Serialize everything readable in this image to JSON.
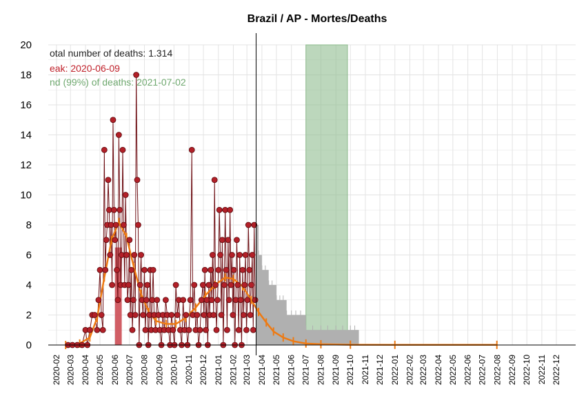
{
  "colors": {
    "grid": "#e3e3e3",
    "bar_gray": "#b0b0b0",
    "peak_bar": "#c9424a",
    "points": "#b22028",
    "points_stroke": "#5a0a0e",
    "line_dark": "#6e0f14",
    "fit_line": "#ee7a12",
    "green_band": "#8fbc8f",
    "annotation_total": "#222222",
    "annotation_peak": "#c0202a",
    "annotation_end": "#6fa86f"
  },
  "chart_data": {
    "type": "bar",
    "title": "Brazil / AP - Mortes/Deaths",
    "xlabel": "",
    "ylabel": "",
    "ylim": [
      0,
      20
    ],
    "yticks": [
      "0",
      "2",
      "4",
      "6",
      "8",
      "10",
      "12",
      "14",
      "16",
      "18",
      "20"
    ],
    "xlim": [
      "2020-01-15",
      "2023-01-10"
    ],
    "x_tick_labels": [
      "2020-02",
      "2020-03",
      "2020-04",
      "2020-05",
      "2020-06",
      "2020-07",
      "2020-08",
      "2020-09",
      "2020-10",
      "2020-11",
      "2020-12",
      "2021-01",
      "2021-02",
      "2021-03",
      "2021-04",
      "2021-05",
      "2021-06",
      "2021-07",
      "2021-08",
      "2021-09",
      "2021-10",
      "2021-11",
      "2021-12",
      "2022-01",
      "2022-02",
      "2022-03",
      "2022-04",
      "2022-05",
      "2022-06",
      "2022-07",
      "2022-08",
      "2022-09",
      "2022-10",
      "2022-11",
      "2022-12"
    ],
    "grid": true,
    "annotations": {
      "total": "otal number of deaths: 1.314",
      "peak": "eak: 2020-06-09",
      "end": "nd (99%) of deaths: 2021-07-02"
    },
    "today_date": "2021-03-20",
    "peak_band": [
      "2020-06-01",
      "2020-06-15"
    ],
    "peak_band_value": 6.5,
    "end_band": [
      "2021-07-01",
      "2021-09-25"
    ],
    "observed_points": [
      [
        "2020-02-25",
        0
      ],
      [
        "2020-03-05",
        0
      ],
      [
        "2020-03-15",
        0
      ],
      [
        "2020-03-25",
        0
      ],
      [
        "2020-04-01",
        1
      ],
      [
        "2020-04-05",
        0
      ],
      [
        "2020-04-10",
        1
      ],
      [
        "2020-04-15",
        2
      ],
      [
        "2020-04-20",
        2
      ],
      [
        "2020-04-25",
        1
      ],
      [
        "2020-04-28",
        3
      ],
      [
        "2020-05-01",
        5
      ],
      [
        "2020-05-04",
        2
      ],
      [
        "2020-05-07",
        1
      ],
      [
        "2020-05-10",
        13
      ],
      [
        "2020-05-12",
        5
      ],
      [
        "2020-05-14",
        7
      ],
      [
        "2020-05-16",
        8
      ],
      [
        "2020-05-18",
        11
      ],
      [
        "2020-05-20",
        9
      ],
      [
        "2020-05-22",
        6
      ],
      [
        "2020-05-24",
        8
      ],
      [
        "2020-05-26",
        4
      ],
      [
        "2020-05-28",
        15
      ],
      [
        "2020-05-30",
        9
      ],
      [
        "2020-06-01",
        7
      ],
      [
        "2020-06-03",
        8
      ],
      [
        "2020-06-05",
        5
      ],
      [
        "2020-06-07",
        3
      ],
      [
        "2020-06-09",
        14
      ],
      [
        "2020-06-11",
        9
      ],
      [
        "2020-06-13",
        4
      ],
      [
        "2020-06-15",
        6
      ],
      [
        "2020-06-17",
        13
      ],
      [
        "2020-06-19",
        8
      ],
      [
        "2020-06-21",
        4
      ],
      [
        "2020-06-23",
        10
      ],
      [
        "2020-06-25",
        6
      ],
      [
        "2020-06-27",
        3
      ],
      [
        "2020-06-29",
        4
      ],
      [
        "2020-07-01",
        7
      ],
      [
        "2020-07-03",
        2
      ],
      [
        "2020-07-05",
        5
      ],
      [
        "2020-07-07",
        1
      ],
      [
        "2020-07-09",
        3
      ],
      [
        "2020-07-11",
        6
      ],
      [
        "2020-07-13",
        2
      ],
      [
        "2020-07-15",
        18
      ],
      [
        "2020-07-17",
        11
      ],
      [
        "2020-07-19",
        8
      ],
      [
        "2020-07-21",
        0
      ],
      [
        "2020-07-23",
        4
      ],
      [
        "2020-07-25",
        6
      ],
      [
        "2020-07-27",
        3
      ],
      [
        "2020-07-29",
        2
      ],
      [
        "2020-08-01",
        5
      ],
      [
        "2020-08-03",
        1
      ],
      [
        "2020-08-05",
        3
      ],
      [
        "2020-08-07",
        4
      ],
      [
        "2020-08-09",
        0
      ],
      [
        "2020-08-11",
        2
      ],
      [
        "2020-08-13",
        5
      ],
      [
        "2020-08-15",
        1
      ],
      [
        "2020-08-17",
        3
      ],
      [
        "2020-08-19",
        5
      ],
      [
        "2020-08-21",
        2
      ],
      [
        "2020-08-24",
        1
      ],
      [
        "2020-08-27",
        3
      ],
      [
        "2020-08-30",
        2
      ],
      [
        "2020-09-02",
        1
      ],
      [
        "2020-09-05",
        0
      ],
      [
        "2020-09-08",
        2
      ],
      [
        "2020-09-11",
        1
      ],
      [
        "2020-09-14",
        3
      ],
      [
        "2020-09-17",
        2
      ],
      [
        "2020-09-20",
        1
      ],
      [
        "2020-09-23",
        0
      ],
      [
        "2020-09-26",
        2
      ],
      [
        "2020-09-29",
        1
      ],
      [
        "2020-10-02",
        0
      ],
      [
        "2020-10-05",
        4
      ],
      [
        "2020-10-08",
        2
      ],
      [
        "2020-10-11",
        3
      ],
      [
        "2020-10-14",
        1
      ],
      [
        "2020-10-17",
        0
      ],
      [
        "2020-10-20",
        3
      ],
      [
        "2020-10-23",
        1
      ],
      [
        "2020-10-26",
        2
      ],
      [
        "2020-10-29",
        0
      ],
      [
        "2020-11-01",
        1
      ],
      [
        "2020-11-04",
        3
      ],
      [
        "2020-11-07",
        13
      ],
      [
        "2020-11-09",
        2
      ],
      [
        "2020-11-12",
        4
      ],
      [
        "2020-11-15",
        1
      ],
      [
        "2020-11-18",
        2
      ],
      [
        "2020-11-21",
        0
      ],
      [
        "2020-11-24",
        1
      ],
      [
        "2020-11-27",
        3
      ],
      [
        "2020-11-30",
        4
      ],
      [
        "2020-12-02",
        2
      ],
      [
        "2020-12-04",
        5
      ],
      [
        "2020-12-06",
        1
      ],
      [
        "2020-12-08",
        3
      ],
      [
        "2020-12-10",
        0
      ],
      [
        "2020-12-12",
        4
      ],
      [
        "2020-12-14",
        2
      ],
      [
        "2020-12-16",
        5
      ],
      [
        "2020-12-18",
        3
      ],
      [
        "2020-12-20",
        6
      ],
      [
        "2020-12-22",
        2
      ],
      [
        "2020-12-24",
        11
      ],
      [
        "2020-12-26",
        4
      ],
      [
        "2020-12-28",
        1
      ],
      [
        "2020-12-30",
        3
      ],
      [
        "2021-01-01",
        5
      ],
      [
        "2021-01-03",
        9
      ],
      [
        "2021-01-05",
        6
      ],
      [
        "2021-01-07",
        2
      ],
      [
        "2021-01-09",
        7
      ],
      [
        "2021-01-11",
        0
      ],
      [
        "2021-01-13",
        4
      ],
      [
        "2021-01-15",
        9
      ],
      [
        "2021-01-17",
        5
      ],
      [
        "2021-01-19",
        1
      ],
      [
        "2021-01-21",
        7
      ],
      [
        "2021-01-23",
        3
      ],
      [
        "2021-01-25",
        9
      ],
      [
        "2021-01-27",
        4
      ],
      [
        "2021-01-29",
        6
      ],
      [
        "2021-01-31",
        2
      ],
      [
        "2021-02-02",
        5
      ],
      [
        "2021-02-04",
        0
      ],
      [
        "2021-02-06",
        3
      ],
      [
        "2021-02-08",
        7
      ],
      [
        "2021-02-10",
        4
      ],
      [
        "2021-02-12",
        1
      ],
      [
        "2021-02-14",
        6
      ],
      [
        "2021-02-16",
        3
      ],
      [
        "2021-02-18",
        0
      ],
      [
        "2021-02-20",
        5
      ],
      [
        "2021-02-22",
        2
      ],
      [
        "2021-02-24",
        4
      ],
      [
        "2021-02-26",
        6
      ],
      [
        "2021-02-28",
        1
      ],
      [
        "2021-03-02",
        3
      ],
      [
        "2021-03-04",
        8
      ],
      [
        "2021-03-06",
        5
      ],
      [
        "2021-03-08",
        2
      ],
      [
        "2021-03-10",
        4
      ],
      [
        "2021-03-12",
        6
      ],
      [
        "2021-03-14",
        1
      ],
      [
        "2021-03-16",
        8
      ],
      [
        "2021-03-18",
        3
      ]
    ],
    "projected_bars": [
      [
        "2021-03-20",
        8
      ],
      [
        "2021-03-25",
        6
      ],
      [
        "2021-04-01",
        5
      ],
      [
        "2021-04-08",
        5
      ],
      [
        "2021-04-15",
        4
      ],
      [
        "2021-04-22",
        4
      ],
      [
        "2021-05-01",
        3
      ],
      [
        "2021-05-08",
        3
      ],
      [
        "2021-05-15",
        3
      ],
      [
        "2021-05-22",
        2
      ],
      [
        "2021-06-01",
        2
      ],
      [
        "2021-06-10",
        2
      ],
      [
        "2021-06-20",
        2
      ],
      [
        "2021-07-01",
        1
      ],
      [
        "2021-07-15",
        1
      ],
      [
        "2021-08-01",
        1
      ],
      [
        "2021-08-15",
        1
      ],
      [
        "2021-09-01",
        1
      ],
      [
        "2021-09-15",
        1
      ],
      [
        "2021-10-01",
        1
      ],
      [
        "2021-10-10",
        1
      ]
    ],
    "fit_curve": [
      [
        "2020-02-20",
        0
      ],
      [
        "2020-03-20",
        0.1
      ],
      [
        "2020-04-10",
        0.5
      ],
      [
        "2020-04-25",
        1.8
      ],
      [
        "2020-05-10",
        4.5
      ],
      [
        "2020-05-25",
        7.0
      ],
      [
        "2020-06-09",
        8.2
      ],
      [
        "2020-06-25",
        7.2
      ],
      [
        "2020-07-10",
        5.2
      ],
      [
        "2020-07-25",
        3.4
      ],
      [
        "2020-08-10",
        2.2
      ],
      [
        "2020-08-25",
        1.6
      ],
      [
        "2020-09-15",
        1.4
      ],
      [
        "2020-10-05",
        1.4
      ],
      [
        "2020-10-25",
        1.8
      ],
      [
        "2020-11-15",
        2.5
      ],
      [
        "2020-12-05",
        3.3
      ],
      [
        "2020-12-25",
        4.0
      ],
      [
        "2021-01-15",
        4.5
      ],
      [
        "2021-02-01",
        4.4
      ],
      [
        "2021-02-20",
        3.9
      ],
      [
        "2021-03-10",
        3.0
      ],
      [
        "2021-03-25",
        2.2
      ],
      [
        "2021-04-10",
        1.5
      ],
      [
        "2021-04-25",
        0.9
      ],
      [
        "2021-05-15",
        0.5
      ],
      [
        "2021-06-05",
        0.25
      ],
      [
        "2021-07-01",
        0.1
      ],
      [
        "2021-08-01",
        0.05
      ],
      [
        "2021-10-01",
        0.02
      ],
      [
        "2022-01-01",
        0.01
      ],
      [
        "2022-07-31",
        0.01
      ]
    ]
  }
}
